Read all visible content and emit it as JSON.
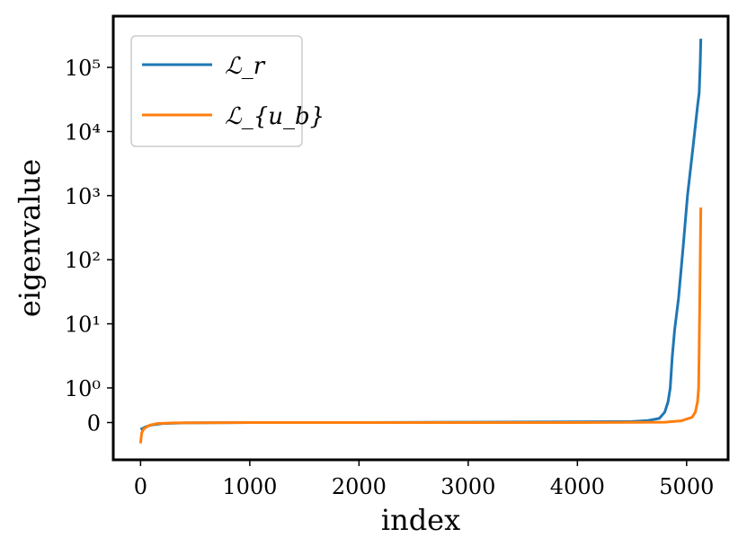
{
  "chart_data": {
    "type": "line",
    "xlabel": "index",
    "ylabel": "eigenvalue",
    "xlim": [
      -250,
      5380
    ],
    "xticks": [
      0,
      1000,
      2000,
      3000,
      4000,
      5000
    ],
    "ylim": [
      -1.1,
      630000
    ],
    "yscale": "symlog",
    "linthresh": 1,
    "yticks": [
      0,
      {
        "value": 1,
        "label": "10⁰"
      },
      {
        "value": 10,
        "label": "10¹"
      },
      {
        "value": 100,
        "label": "10²"
      },
      {
        "value": 1000,
        "label": "10³"
      },
      {
        "value": 10000,
        "label": "10⁴"
      },
      {
        "value": 100000,
        "label": "10⁵"
      }
    ],
    "legend": "upper left",
    "series": [
      {
        "name": "ℒ_r",
        "color": "#1f77b4",
        "x": [
          0,
          50,
          100,
          200,
          400,
          1000,
          2000,
          3000,
          4000,
          4500,
          4650,
          4750,
          4800,
          4830,
          4850,
          4868,
          4890,
          4926,
          4967,
          5008,
          5060,
          5100,
          5115,
          5125,
          5130
        ],
        "values": [
          -0.2,
          -0.12,
          -0.07,
          -0.03,
          -0.01,
          0,
          0,
          0.01,
          0.02,
          0.03,
          0.06,
          0.12,
          0.3,
          0.6,
          1,
          3,
          8,
          25,
          150,
          1000,
          6000,
          25000,
          40000,
          120000,
          280000
        ]
      },
      {
        "name": "ℒ_{u_b}",
        "color": "#ff7f0e",
        "x": [
          0,
          10,
          30,
          80,
          150,
          300,
          1000,
          2000,
          3000,
          4000,
          4800,
          4950,
          5050,
          5080,
          5100,
          5110,
          5120,
          5130
        ],
        "values": [
          -0.6,
          -0.3,
          -0.18,
          -0.08,
          -0.03,
          -0.01,
          0,
          0,
          0,
          0,
          0.01,
          0.05,
          0.15,
          0.3,
          0.6,
          1,
          20,
          650
        ]
      }
    ]
  }
}
